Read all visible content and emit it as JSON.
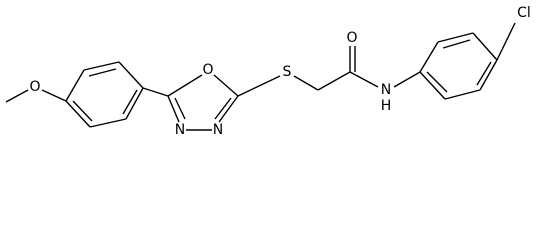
{
  "atoms": [
    {
      "label": "O"
    },
    {
      "label": "O"
    },
    {
      "label": "N"
    },
    {
      "label": "N"
    },
    {
      "label": "S"
    },
    {
      "label": "O"
    },
    {
      "label": "N"
    },
    {
      "label": "H"
    },
    {
      "label": "Cl"
    }
  ]
}
